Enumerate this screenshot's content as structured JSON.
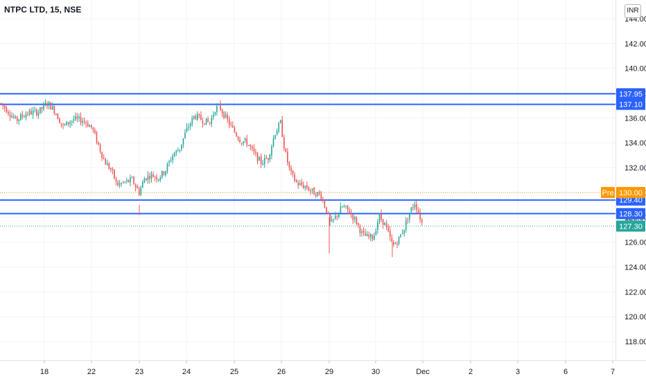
{
  "header": {
    "title": "NTPC LTD, 15, NSE",
    "currency": "INR"
  },
  "chart_data": {
    "type": "candlestick",
    "ylim": [
      116.5,
      145.5
    ],
    "y_ticks": [
      118,
      120,
      122,
      124,
      126,
      128,
      130,
      132,
      134,
      136,
      138,
      140,
      142,
      144
    ],
    "y_tick_labels": [
      "118.00",
      "120.00",
      "122.00",
      "124.00",
      "126.00",
      "128.00",
      "130.00",
      "132.00",
      "134.00",
      "136.00",
      "138.00",
      "140.00",
      "142.00",
      "144.00"
    ],
    "x_tick_labels": [
      "18",
      "22",
      "23",
      "24",
      "25",
      "26",
      "29",
      "30",
      "Dec",
      "2",
      "3",
      "6",
      "7"
    ],
    "grid": true,
    "horizontal_levels": [
      {
        "value": 137.95,
        "label": "137.95",
        "color": "#2962ff"
      },
      {
        "value": 137.1,
        "label": "137.10",
        "color": "#2962ff"
      },
      {
        "value": 129.4,
        "label": "129.40",
        "color": "#2962ff"
      },
      {
        "value": 128.3,
        "label": "128.30",
        "color": "#2962ff"
      }
    ],
    "premarket": {
      "value": 130.0,
      "tag": "Pre",
      "label": "130.00",
      "color": "#ff9800"
    },
    "last_price": {
      "value": 127.3,
      "label": "127.30",
      "color": "#26a69a"
    },
    "colors": {
      "up": "#26a69a",
      "down": "#ef5350",
      "grid": "#f0f3fa",
      "axis": "#e0e3eb"
    },
    "price_path": [
      [
        0,
        137.2
      ],
      [
        10,
        136.6
      ],
      [
        22,
        135.8
      ],
      [
        38,
        136.4
      ],
      [
        55,
        136.5
      ],
      [
        68,
        137.2
      ],
      [
        78,
        136.6
      ],
      [
        90,
        135.3
      ],
      [
        105,
        135.9
      ],
      [
        120,
        135.8
      ],
      [
        132,
        135.2
      ],
      [
        140,
        134.0
      ],
      [
        150,
        132.5
      ],
      [
        160,
        131.8
      ],
      [
        168,
        130.6
      ],
      [
        178,
        130.8
      ],
      [
        190,
        131.0
      ],
      [
        200,
        130.0
      ],
      [
        208,
        131.2
      ],
      [
        218,
        131.4
      ],
      [
        228,
        131.2
      ],
      [
        238,
        131.8
      ],
      [
        248,
        133.0
      ],
      [
        258,
        133.5
      ],
      [
        268,
        135.0
      ],
      [
        280,
        136.2
      ],
      [
        292,
        135.8
      ],
      [
        302,
        135.6
      ],
      [
        310,
        136.8
      ],
      [
        316,
        136.9
      ],
      [
        326,
        135.9
      ],
      [
        336,
        135.0
      ],
      [
        346,
        134.2
      ],
      [
        356,
        134.0
      ],
      [
        366,
        133.1
      ],
      [
        376,
        132.4
      ],
      [
        386,
        132.8
      ],
      [
        396,
        134.8
      ],
      [
        404,
        135.6
      ],
      [
        410,
        133.4
      ],
      [
        418,
        131.6
      ],
      [
        428,
        130.7
      ],
      [
        440,
        130.5
      ],
      [
        452,
        130.0
      ],
      [
        462,
        129.8
      ],
      [
        470,
        128.6
      ],
      [
        476,
        127.4
      ],
      [
        484,
        128.1
      ],
      [
        494,
        128.9
      ],
      [
        504,
        128.4
      ],
      [
        514,
        127.6
      ],
      [
        522,
        126.6
      ],
      [
        530,
        126.4
      ],
      [
        538,
        126.4
      ],
      [
        546,
        128.1
      ],
      [
        554,
        127.5
      ],
      [
        560,
        126.6
      ],
      [
        566,
        125.7
      ],
      [
        574,
        126.2
      ],
      [
        582,
        127.1
      ],
      [
        590,
        128.4
      ],
      [
        598,
        129.2
      ],
      [
        604,
        128.2
      ],
      [
        610,
        127.3
      ]
    ]
  }
}
